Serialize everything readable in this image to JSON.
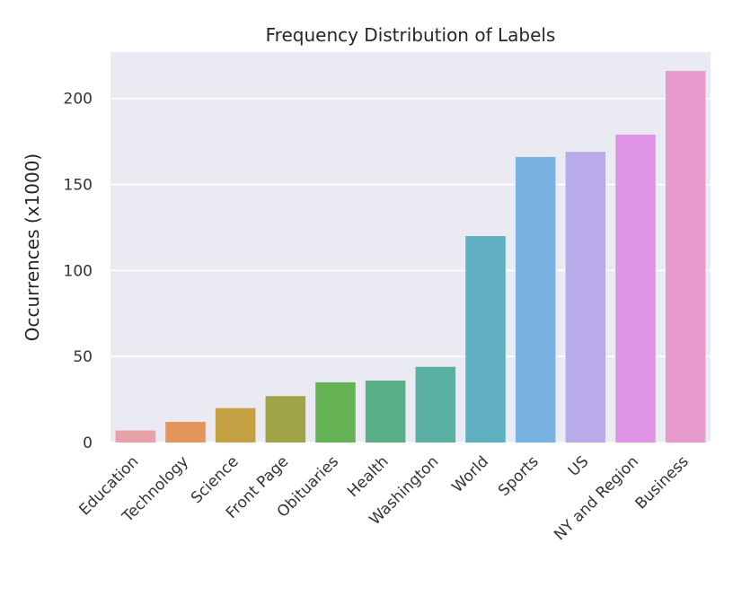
{
  "chart_data": {
    "type": "bar",
    "title": "Frequency Distribution of Labels",
    "xlabel": "",
    "ylabel": "Occurrences (x1000)",
    "categories": [
      "Education",
      "Technology",
      "Science",
      "Front Page",
      "Obituaries",
      "Health",
      "Washington",
      "World",
      "Sports",
      "US",
      "NY and Region",
      "Business"
    ],
    "values": [
      7,
      12,
      20,
      27,
      35,
      36,
      44,
      120,
      166,
      169,
      179,
      216
    ],
    "colors": [
      "#e8a0a9",
      "#e3955d",
      "#c4a042",
      "#a0a447",
      "#66b356",
      "#5aae88",
      "#5bb0a4",
      "#5fafc0",
      "#78b2e0",
      "#b9abea",
      "#e094e6",
      "#e69bcc"
    ],
    "yticks": [
      0,
      50,
      100,
      150,
      200
    ],
    "ylim": [
      0,
      227
    ],
    "grid": true,
    "plot_background": "#eaeaf2"
  }
}
